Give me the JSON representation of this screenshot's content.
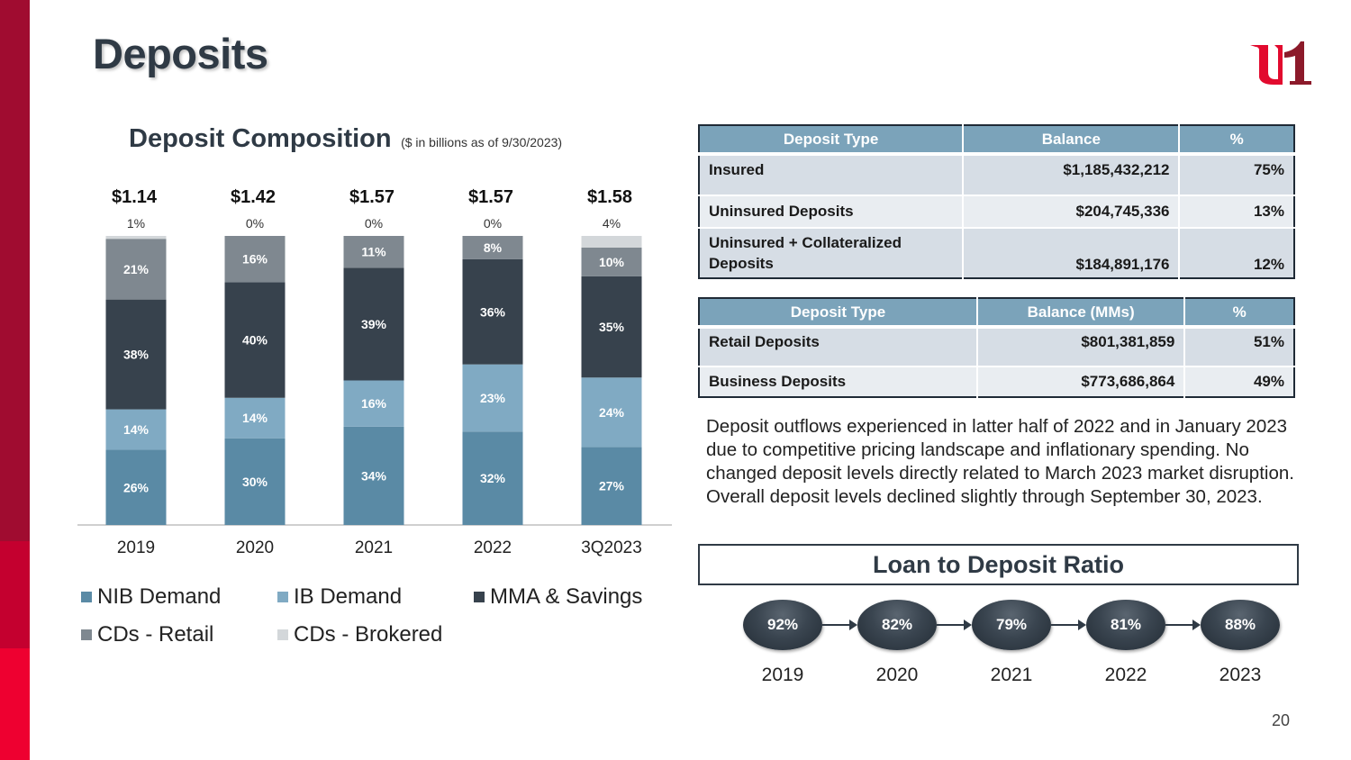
{
  "page": {
    "title": "Deposits",
    "page_number": "20",
    "logo_text": "u1",
    "colors": {
      "sidebar_dark": "#a00c30",
      "sidebar_mid": "#c4002f",
      "sidebar_bright": "#ee0030",
      "logo_u": "#e20a2e",
      "logo_1": "#8c1a2a",
      "title": "#2f3a45",
      "table_header": "#7ba3ba"
    }
  },
  "chart_title": {
    "main": "Deposit Composition",
    "sub": "($ in billions as of 9/30/2023)"
  },
  "chart_data": {
    "type": "bar",
    "stacked": true,
    "title": "Deposit Composition",
    "subtitle": "($ in billions as of 9/30/2023)",
    "xlabel": "",
    "ylabel": "",
    "ylim": [
      0,
      100
    ],
    "grid": false,
    "legend_position": "bottom",
    "categories": [
      "2019",
      "2020",
      "2021",
      "2022",
      "3Q2023"
    ],
    "totals": [
      "$1.14",
      "$1.42",
      "$1.57",
      "$1.57",
      "$1.58"
    ],
    "series": [
      {
        "name": "NIB Demand",
        "color": "#5a8aa5",
        "values": [
          26,
          30,
          34,
          32,
          27
        ]
      },
      {
        "name": "IB Demand",
        "color": "#80aac3",
        "values": [
          14,
          14,
          16,
          23,
          24
        ]
      },
      {
        "name": "MMA & Savings",
        "color": "#37424d",
        "values": [
          38,
          40,
          39,
          36,
          35
        ]
      },
      {
        "name": "CDs - Retail",
        "color": "#7f8890",
        "values": [
          21,
          16,
          11,
          8,
          10
        ]
      },
      {
        "name": "CDs - Brokered",
        "color": "#d3d7da",
        "values": [
          1,
          0,
          0,
          0,
          4
        ]
      }
    ]
  },
  "legend": [
    {
      "name": "NIB Demand",
      "color": "#5a8aa5"
    },
    {
      "name": "IB Demand",
      "color": "#80aac3"
    },
    {
      "name": "MMA & Savings",
      "color": "#37424d"
    },
    {
      "name": "CDs - Retail",
      "color": "#7f8890"
    },
    {
      "name": "CDs - Brokered",
      "color": "#d3d7da"
    }
  ],
  "table1": {
    "headers": [
      "Deposit Type",
      "Balance",
      "%"
    ],
    "rows": [
      {
        "type": "Insured",
        "balance": "$1,185,432,212",
        "pct": "75%"
      },
      {
        "type": "Uninsured Deposits",
        "balance": "$204,745,336",
        "pct": "13%"
      },
      {
        "type": "Uninsured + Collateralized Deposits",
        "balance": "$184,891,176",
        "pct": "12%"
      }
    ]
  },
  "table2": {
    "headers": [
      "Deposit Type",
      "Balance (MMs)",
      "%"
    ],
    "rows": [
      {
        "type": "Retail Deposits",
        "balance": "$801,381,859",
        "pct": "51%"
      },
      {
        "type": "Business Deposits",
        "balance": "$773,686,864",
        "pct": "49%"
      }
    ]
  },
  "narrative": "Deposit outflows experienced in latter half of 2022 and in January 2023 due to competitive pricing landscape and inflationary spending. No changed deposit levels directly related to March 2023 market disruption. Overall deposit levels declined slightly through September 30, 2023.",
  "loan_to_deposit": {
    "title": "Loan to Deposit Ratio",
    "items": [
      {
        "year": "2019",
        "ratio": "92%"
      },
      {
        "year": "2020",
        "ratio": "82%"
      },
      {
        "year": "2021",
        "ratio": "79%"
      },
      {
        "year": "2022",
        "ratio": "81%"
      },
      {
        "year": "2023",
        "ratio": "88%"
      }
    ]
  }
}
